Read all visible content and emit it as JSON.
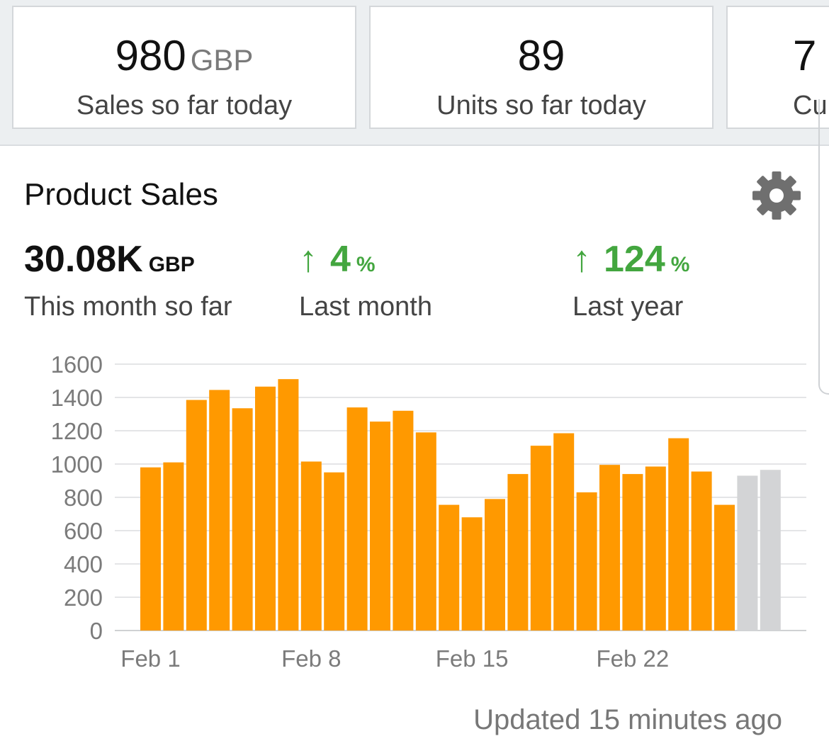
{
  "cards": [
    {
      "value": "980",
      "unit": "GBP",
      "label": "Sales so far today"
    },
    {
      "value": "89",
      "unit": "",
      "label": "Units so far today"
    },
    {
      "value": "7",
      "unit": "",
      "label": "Cu"
    }
  ],
  "panel": {
    "title": "Product Sales",
    "metrics": [
      {
        "value": "30.08K",
        "unit": "GBP",
        "label": "This month so far"
      },
      {
        "arrow": "↑",
        "value": "4",
        "unit": "%",
        "label": "Last month"
      },
      {
        "arrow": "↑",
        "value": "124",
        "unit": "%",
        "label": "Last year"
      }
    ]
  },
  "chart_data": {
    "type": "bar",
    "title": "",
    "xlabel": "",
    "ylabel": "",
    "ylim": [
      0,
      1600
    ],
    "yticks": [
      0,
      200,
      400,
      600,
      800,
      1000,
      1200,
      1400,
      1600
    ],
    "x_tick_labels": [
      "Feb 1",
      "Feb 8",
      "Feb 15",
      "Feb 22"
    ],
    "x_tick_days": [
      1,
      8,
      15,
      22
    ],
    "days": [
      1,
      2,
      3,
      4,
      5,
      6,
      7,
      8,
      9,
      10,
      11,
      12,
      13,
      14,
      15,
      16,
      17,
      18,
      19,
      20,
      21,
      22,
      23,
      24,
      25,
      26,
      27,
      28
    ],
    "values": [
      980,
      1010,
      1385,
      1445,
      1335,
      1465,
      1510,
      1015,
      950,
      1340,
      1255,
      1320,
      1190,
      755,
      680,
      790,
      940,
      1110,
      1185,
      830,
      995,
      940,
      985,
      1155,
      955,
      755,
      930,
      965
    ],
    "bar_colors": {
      "actual": "#ff9900",
      "forecast": "#d3d4d6"
    },
    "forecast_from_day": 27,
    "grid": true
  },
  "footer": "Updated 15 minutes ago",
  "colors": {
    "positive": "#43a63f",
    "bar": "#ff9900",
    "forecast": "#d3d4d6"
  }
}
